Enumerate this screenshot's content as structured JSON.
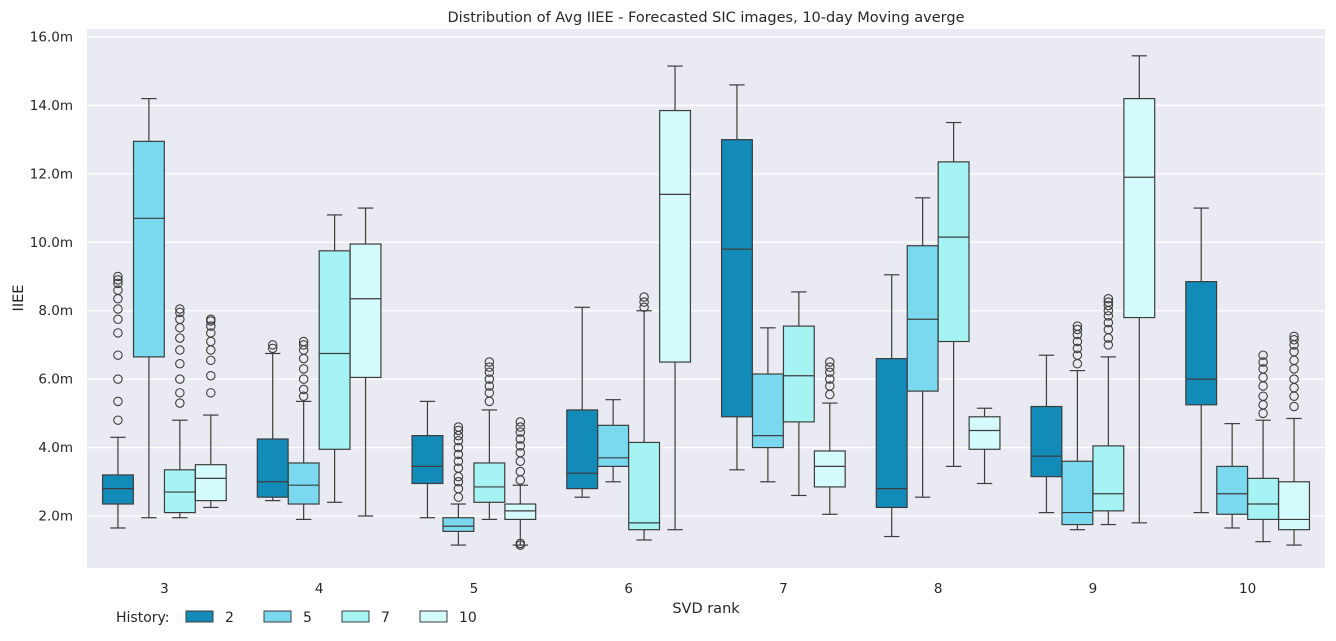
{
  "chart_data": {
    "type": "box",
    "title": "Distribution of Avg IIEE - Forecasted SIC images, 10-day Moving averge",
    "xlabel": "SVD rank",
    "ylabel": "IIEE",
    "categories": [
      "3",
      "4",
      "5",
      "6",
      "7",
      "8",
      "9",
      "10"
    ],
    "y_ticks": [
      2.0,
      4.0,
      6.0,
      8.0,
      10.0,
      12.0,
      14.0,
      16.0
    ],
    "y_tick_labels": [
      "2.0m",
      "4.0m",
      "6.0m",
      "8.0m",
      "10.0m",
      "12.0m",
      "14.0m",
      "16.0m"
    ],
    "ylim": [
      0.5,
      16.2
    ],
    "grid": true,
    "legend": {
      "title": "History:",
      "placement": "bottom-left"
    },
    "series": [
      {
        "name": "2",
        "color": "#138bb8",
        "boxes": [
          {
            "whislo": 1.65,
            "q1": 2.35,
            "med": 2.8,
            "q3": 3.2,
            "whishi": 4.3,
            "fliers": [
              4.8,
              5.35,
              6.0,
              6.7,
              7.35,
              7.75,
              8.05,
              8.35,
              8.6,
              8.8,
              8.9,
              9.0
            ]
          },
          {
            "whislo": 2.45,
            "q1": 2.55,
            "med": 3.0,
            "q3": 4.25,
            "whishi": 6.75,
            "fliers": [
              6.9,
              7.0
            ]
          },
          {
            "whislo": 1.95,
            "q1": 2.95,
            "med": 3.45,
            "q3": 4.35,
            "whishi": 5.35,
            "fliers": []
          },
          {
            "whislo": 2.55,
            "q1": 2.8,
            "med": 3.25,
            "q3": 5.1,
            "whishi": 8.1,
            "fliers": []
          },
          {
            "whislo": 3.35,
            "q1": 4.9,
            "med": 9.8,
            "q3": 13.0,
            "whishi": 14.6,
            "fliers": []
          },
          {
            "whislo": 1.4,
            "q1": 2.25,
            "med": 2.8,
            "q3": 6.6,
            "whishi": 9.05,
            "fliers": []
          },
          {
            "whislo": 2.1,
            "q1": 3.15,
            "med": 3.75,
            "q3": 5.2,
            "whishi": 6.7,
            "fliers": []
          },
          {
            "whislo": 2.1,
            "q1": 5.25,
            "med": 6.0,
            "q3": 8.85,
            "whishi": 11.0,
            "fliers": []
          }
        ]
      },
      {
        "name": "5",
        "color": "#7ad9ef",
        "boxes": [
          {
            "whislo": 1.95,
            "q1": 6.65,
            "med": 10.7,
            "q3": 12.95,
            "whishi": 14.2,
            "fliers": []
          },
          {
            "whislo": 1.9,
            "q1": 2.35,
            "med": 2.9,
            "q3": 3.55,
            "whishi": 5.35,
            "fliers": [
              5.5,
              5.7,
              6.0,
              6.3,
              6.6,
              6.85,
              7.0,
              7.1
            ]
          },
          {
            "whislo": 1.15,
            "q1": 1.55,
            "med": 1.7,
            "q3": 1.95,
            "whishi": 2.35,
            "fliers": [
              2.55,
              2.8,
              3.0,
              3.15,
              3.4,
              3.6,
              3.8,
              4.0,
              4.2,
              4.35,
              4.5,
              4.6
            ]
          },
          {
            "whislo": 3.0,
            "q1": 3.45,
            "med": 3.7,
            "q3": 4.65,
            "whishi": 5.4,
            "fliers": []
          },
          {
            "whislo": 3.0,
            "q1": 4.0,
            "med": 4.35,
            "q3": 6.15,
            "whishi": 7.5,
            "fliers": []
          },
          {
            "whislo": 2.55,
            "q1": 5.65,
            "med": 7.75,
            "q3": 9.9,
            "whishi": 11.3,
            "fliers": []
          },
          {
            "whislo": 1.6,
            "q1": 1.75,
            "med": 2.1,
            "q3": 3.6,
            "whishi": 6.25,
            "fliers": [
              6.45,
              6.7,
              6.9,
              7.1,
              7.3,
              7.45,
              7.55
            ]
          },
          {
            "whislo": 1.65,
            "q1": 2.05,
            "med": 2.65,
            "q3": 3.45,
            "whishi": 4.7,
            "fliers": []
          }
        ]
      },
      {
        "name": "7",
        "color": "#a5f3f3",
        "boxes": [
          {
            "whislo": 1.95,
            "q1": 2.1,
            "med": 2.7,
            "q3": 3.35,
            "whishi": 4.8,
            "fliers": [
              5.3,
              5.6,
              6.0,
              6.45,
              6.85,
              7.2,
              7.5,
              7.75,
              7.95,
              8.05
            ]
          },
          {
            "whislo": 2.4,
            "q1": 3.95,
            "med": 6.75,
            "q3": 9.75,
            "whishi": 10.8,
            "fliers": []
          },
          {
            "whislo": 1.9,
            "q1": 2.4,
            "med": 2.85,
            "q3": 3.55,
            "whishi": 5.1,
            "fliers": [
              5.35,
              5.6,
              5.8,
              6.0,
              6.2,
              6.35,
              6.5
            ]
          },
          {
            "whislo": 1.3,
            "q1": 1.6,
            "med": 1.8,
            "q3": 4.15,
            "whishi": 8.0,
            "fliers": [
              8.1,
              8.25,
              8.4
            ]
          },
          {
            "whislo": 2.6,
            "q1": 4.75,
            "med": 6.1,
            "q3": 7.55,
            "whishi": 8.55,
            "fliers": []
          },
          {
            "whislo": 3.45,
            "q1": 7.1,
            "med": 10.15,
            "q3": 12.35,
            "whishi": 13.5,
            "fliers": []
          },
          {
            "whislo": 1.75,
            "q1": 2.15,
            "med": 2.65,
            "q3": 4.05,
            "whishi": 6.65,
            "fliers": [
              7.0,
              7.2,
              7.45,
              7.65,
              7.85,
              8.0,
              8.15,
              8.25,
              8.35
            ]
          },
          {
            "whislo": 1.25,
            "q1": 1.9,
            "med": 2.35,
            "q3": 3.1,
            "whishi": 4.8,
            "fliers": [
              5.0,
              5.25,
              5.5,
              5.8,
              6.05,
              6.3,
              6.5,
              6.7
            ]
          }
        ]
      },
      {
        "name": "10",
        "color": "#d3fbfb",
        "boxes": [
          {
            "whislo": 2.25,
            "q1": 2.45,
            "med": 3.1,
            "q3": 3.5,
            "whishi": 4.95,
            "fliers": [
              5.6,
              6.1,
              6.55,
              6.85,
              7.1,
              7.35,
              7.55,
              7.7,
              7.75
            ]
          },
          {
            "whislo": 2.0,
            "q1": 6.05,
            "med": 8.35,
            "q3": 9.95,
            "whishi": 11.0,
            "fliers": []
          },
          {
            "whislo": 1.15,
            "q1": 1.9,
            "med": 2.15,
            "q3": 2.35,
            "whishi": 2.9,
            "fliers": [
              1.15,
              1.2,
              3.05,
              3.3,
              3.6,
              3.85,
              4.05,
              4.25,
              4.45,
              4.6,
              4.75
            ]
          },
          {
            "whislo": 1.6,
            "q1": 6.5,
            "med": 11.4,
            "q3": 13.85,
            "whishi": 15.15,
            "fliers": []
          },
          {
            "whislo": 2.05,
            "q1": 2.85,
            "med": 3.45,
            "q3": 3.9,
            "whishi": 5.3,
            "fliers": [
              5.55,
              5.8,
              6.0,
              6.2,
              6.35,
              6.5
            ]
          },
          {
            "whislo": 2.95,
            "q1": 3.95,
            "med": 4.5,
            "q3": 4.9,
            "whishi": 5.15,
            "fliers": []
          },
          {
            "whislo": 1.8,
            "q1": 7.8,
            "med": 11.9,
            "q3": 14.2,
            "whishi": 15.45,
            "fliers": []
          },
          {
            "whislo": 1.15,
            "q1": 1.6,
            "med": 1.9,
            "q3": 3.0,
            "whishi": 4.85,
            "fliers": [
              5.2,
              5.5,
              5.75,
              6.0,
              6.3,
              6.55,
              6.8,
              7.0,
              7.15,
              7.25
            ]
          }
        ]
      }
    ]
  }
}
